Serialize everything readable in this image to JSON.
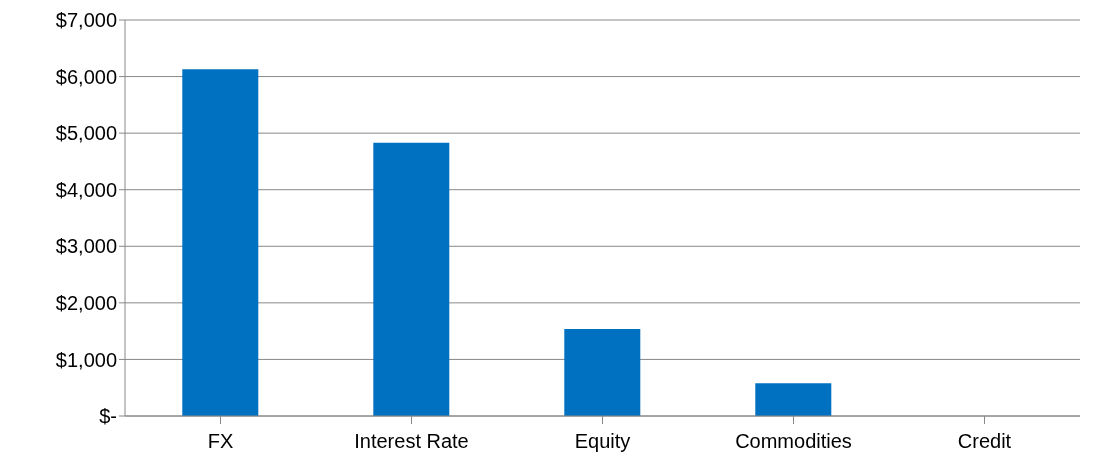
{
  "chart_data": {
    "type": "bar",
    "categories": [
      "FX",
      "Interest Rate",
      "Equity",
      "Commodities",
      "Credit"
    ],
    "values": [
      6130,
      4830,
      1540,
      580,
      0
    ],
    "color": "#0070c0",
    "ylim": [
      0,
      7000
    ],
    "yticks": [
      {
        "value": 0,
        "label": "$-"
      },
      {
        "value": 1000,
        "label": "$1,000"
      },
      {
        "value": 2000,
        "label": "$2,000"
      },
      {
        "value": 3000,
        "label": "$3,000"
      },
      {
        "value": 4000,
        "label": "$4,000"
      },
      {
        "value": 5000,
        "label": "$5,000"
      },
      {
        "value": 6000,
        "label": "$6,000"
      },
      {
        "value": 7000,
        "label": "$7,000"
      }
    ],
    "grid": "y",
    "legend": false
  }
}
